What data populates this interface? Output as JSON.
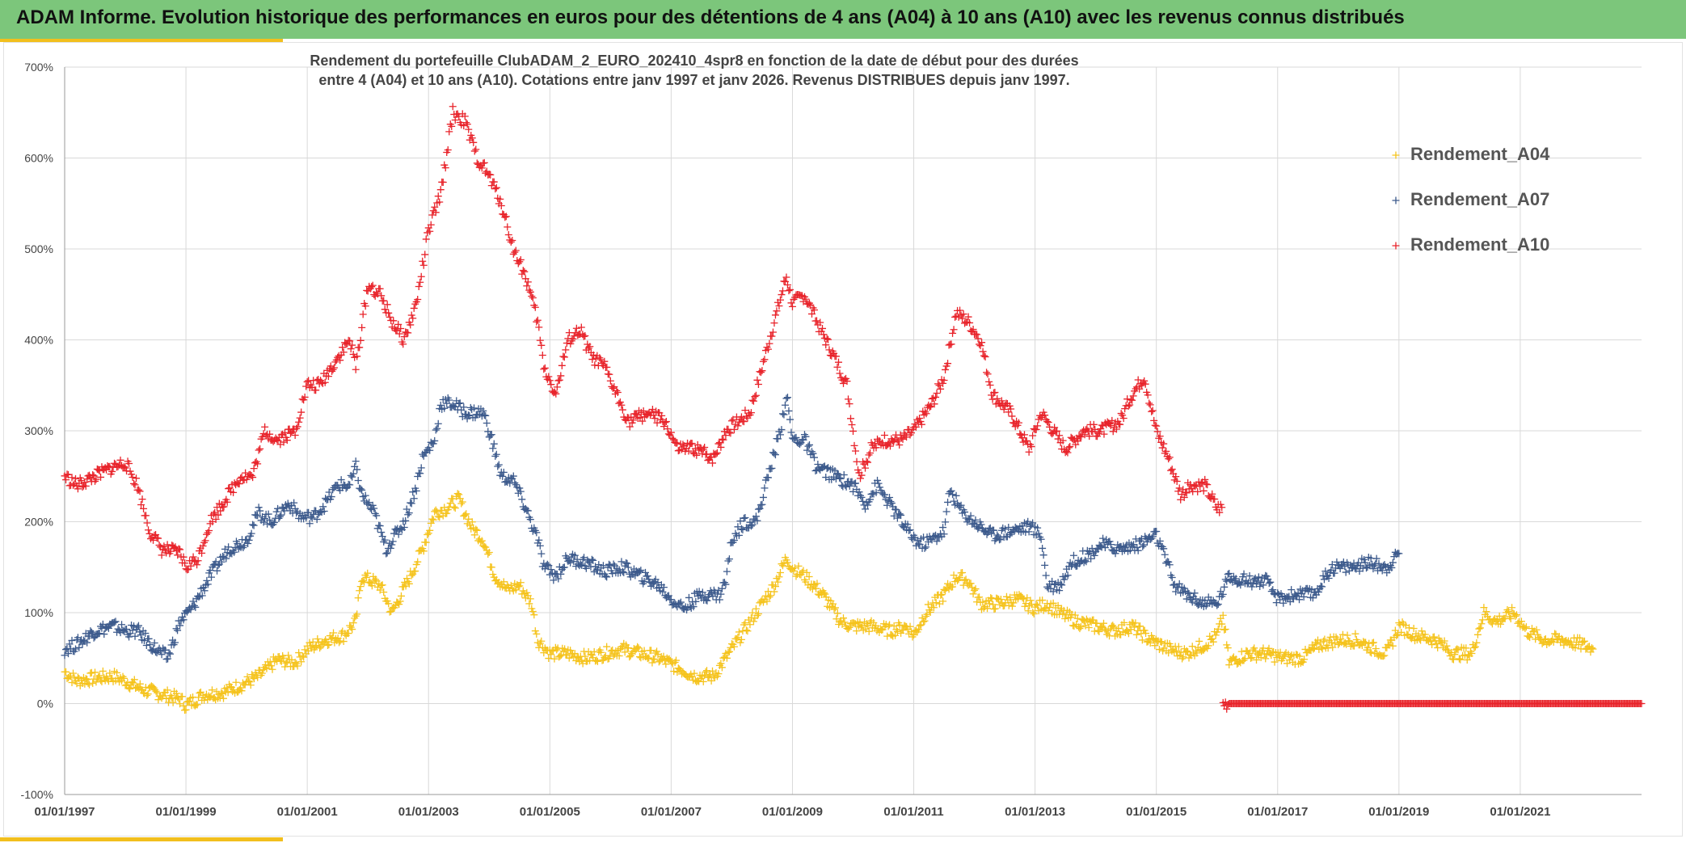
{
  "banner": {
    "title": "ADAM Informe. Evolution historique des performances en euros pour des détentions de 4 ans (A04) à 10 ans (A10) avec les revenus connus distribués"
  },
  "colors": {
    "banner_bg": "#7cc67b",
    "accent": "#f2bf1d",
    "A04": "#f5c31c",
    "A07": "#3c5a8c",
    "A10": "#e8232a"
  },
  "chart_data": {
    "type": "scatter",
    "title_lines": [
      "Rendement du portefeuille ClubADAM_2_EURO_202410_4spr8  en fonction de la date de début pour des durées",
      "entre 4 (A04) et 10 ans (A10). Cotations entre janv 1997 et janv 2026. Revenus DISTRIBUES depuis janv 1997."
    ],
    "xlabel": "",
    "ylabel": "",
    "x_range": [
      1997.0,
      2023.0
    ],
    "ylim": [
      -100,
      700
    ],
    "y_ticks": [
      "-100%",
      "0%",
      "100%",
      "200%",
      "300%",
      "400%",
      "500%",
      "600%",
      "700%"
    ],
    "y_tick_values": [
      -100,
      0,
      100,
      200,
      300,
      400,
      500,
      600,
      700
    ],
    "x_ticks": [
      "01/01/1997",
      "01/01/1999",
      "01/01/2001",
      "01/01/2003",
      "01/01/2005",
      "01/01/2007",
      "01/01/2009",
      "01/01/2011",
      "01/01/2013",
      "01/01/2015",
      "01/01/2017",
      "01/01/2019",
      "01/01/2021"
    ],
    "x_tick_values": [
      1997,
      1999,
      2001,
      2003,
      2005,
      2007,
      2009,
      2011,
      2013,
      2015,
      2017,
      2019,
      2021
    ],
    "grid": true,
    "legend_position": "top-right",
    "marker": "+",
    "series": [
      {
        "name": "Rendement_A04",
        "color": "#f5c31c",
        "points": [
          [
            1997.0,
            35
          ],
          [
            1997.2,
            25
          ],
          [
            1997.5,
            28
          ],
          [
            1997.8,
            30
          ],
          [
            1998.0,
            25
          ],
          [
            1998.3,
            15
          ],
          [
            1998.6,
            10
          ],
          [
            1998.9,
            5
          ],
          [
            1999.0,
            -2
          ],
          [
            1999.3,
            10
          ],
          [
            1999.6,
            12
          ],
          [
            1999.9,
            20
          ],
          [
            2000.2,
            30
          ],
          [
            2000.5,
            48
          ],
          [
            2000.8,
            45
          ],
          [
            2001.0,
            60
          ],
          [
            2001.3,
            70
          ],
          [
            2001.6,
            75
          ],
          [
            2001.8,
            90
          ],
          [
            2001.9,
            140
          ],
          [
            2002.2,
            130
          ],
          [
            2002.4,
            100
          ],
          [
            2002.7,
            140
          ],
          [
            2002.9,
            170
          ],
          [
            2003.1,
            210
          ],
          [
            2003.3,
            215
          ],
          [
            2003.5,
            225
          ],
          [
            2003.7,
            195
          ],
          [
            2003.9,
            180
          ],
          [
            2004.1,
            140
          ],
          [
            2004.3,
            125
          ],
          [
            2004.5,
            130
          ],
          [
            2004.7,
            110
          ],
          [
            2004.8,
            70
          ],
          [
            2005.0,
            55
          ],
          [
            2005.3,
            55
          ],
          [
            2005.6,
            50
          ],
          [
            2005.9,
            55
          ],
          [
            2006.2,
            60
          ],
          [
            2006.5,
            55
          ],
          [
            2006.8,
            50
          ],
          [
            2007.1,
            40
          ],
          [
            2007.4,
            30
          ],
          [
            2007.7,
            30
          ],
          [
            2007.9,
            50
          ],
          [
            2008.1,
            70
          ],
          [
            2008.3,
            90
          ],
          [
            2008.5,
            110
          ],
          [
            2008.7,
            130
          ],
          [
            2008.9,
            160
          ],
          [
            2009.0,
            150
          ],
          [
            2009.2,
            140
          ],
          [
            2009.5,
            120
          ],
          [
            2009.8,
            90
          ],
          [
            2010.0,
            85
          ],
          [
            2010.3,
            85
          ],
          [
            2010.6,
            80
          ],
          [
            2010.9,
            85
          ],
          [
            2011.0,
            75
          ],
          [
            2011.2,
            100
          ],
          [
            2011.5,
            120
          ],
          [
            2011.7,
            140
          ],
          [
            2011.9,
            135
          ],
          [
            2012.1,
            110
          ],
          [
            2012.4,
            110
          ],
          [
            2012.7,
            115
          ],
          [
            2013.0,
            105
          ],
          [
            2013.2,
            110
          ],
          [
            2013.4,
            100
          ],
          [
            2013.7,
            90
          ],
          [
            2014.0,
            85
          ],
          [
            2014.3,
            80
          ],
          [
            2014.6,
            85
          ],
          [
            2014.9,
            70
          ],
          [
            2015.2,
            60
          ],
          [
            2015.5,
            55
          ],
          [
            2015.8,
            65
          ],
          [
            2016.0,
            75
          ],
          [
            2016.1,
            95
          ],
          [
            2016.2,
            45
          ],
          [
            2016.5,
            55
          ],
          [
            2016.8,
            55
          ],
          [
            2017.1,
            50
          ],
          [
            2017.4,
            50
          ],
          [
            2017.7,
            65
          ],
          [
            2018.0,
            70
          ],
          [
            2018.3,
            70
          ],
          [
            2018.6,
            60
          ],
          [
            2018.8,
            55
          ],
          [
            2019.0,
            85
          ],
          [
            2019.3,
            75
          ],
          [
            2019.6,
            70
          ],
          [
            2019.9,
            55
          ],
          [
            2020.2,
            55
          ],
          [
            2020.4,
            100
          ],
          [
            2020.6,
            90
          ],
          [
            2020.9,
            100
          ],
          [
            2021.1,
            80
          ],
          [
            2021.4,
            70
          ],
          [
            2021.7,
            70
          ],
          [
            2022.0,
            65
          ],
          [
            2022.2,
            60
          ]
        ]
      },
      {
        "name": "Rendement_A07",
        "color": "#3c5a8c",
        "points": [
          [
            1997.0,
            60
          ],
          [
            1997.2,
            65
          ],
          [
            1997.5,
            80
          ],
          [
            1997.8,
            85
          ],
          [
            1998.0,
            80
          ],
          [
            1998.2,
            80
          ],
          [
            1998.5,
            60
          ],
          [
            1998.7,
            50
          ],
          [
            1998.9,
            90
          ],
          [
            1999.1,
            105
          ],
          [
            1999.4,
            140
          ],
          [
            1999.7,
            170
          ],
          [
            2000.0,
            180
          ],
          [
            2000.2,
            210
          ],
          [
            2000.4,
            200
          ],
          [
            2000.7,
            220
          ],
          [
            2000.9,
            205
          ],
          [
            2001.1,
            205
          ],
          [
            2001.3,
            220
          ],
          [
            2001.5,
            240
          ],
          [
            2001.7,
            240
          ],
          [
            2001.8,
            260
          ],
          [
            2001.9,
            230
          ],
          [
            2002.1,
            210
          ],
          [
            2002.3,
            170
          ],
          [
            2002.6,
            200
          ],
          [
            2002.8,
            240
          ],
          [
            2002.9,
            270
          ],
          [
            2003.1,
            290
          ],
          [
            2003.2,
            330
          ],
          [
            2003.4,
            330
          ],
          [
            2003.6,
            320
          ],
          [
            2003.9,
            320
          ],
          [
            2004.0,
            300
          ],
          [
            2004.2,
            250
          ],
          [
            2004.4,
            245
          ],
          [
            2004.6,
            215
          ],
          [
            2004.8,
            180
          ],
          [
            2004.9,
            150
          ],
          [
            2005.1,
            140
          ],
          [
            2005.3,
            160
          ],
          [
            2005.6,
            155
          ],
          [
            2005.9,
            145
          ],
          [
            2006.2,
            150
          ],
          [
            2006.5,
            140
          ],
          [
            2006.8,
            130
          ],
          [
            2007.0,
            115
          ],
          [
            2007.2,
            105
          ],
          [
            2007.5,
            120
          ],
          [
            2007.8,
            120
          ],
          [
            2007.9,
            135
          ],
          [
            2008.0,
            180
          ],
          [
            2008.2,
            200
          ],
          [
            2008.4,
            200
          ],
          [
            2008.6,
            250
          ],
          [
            2008.8,
            300
          ],
          [
            2008.9,
            340
          ],
          [
            2009.0,
            290
          ],
          [
            2009.2,
            290
          ],
          [
            2009.4,
            260
          ],
          [
            2009.7,
            250
          ],
          [
            2010.0,
            240
          ],
          [
            2010.2,
            220
          ],
          [
            2010.4,
            240
          ],
          [
            2010.6,
            220
          ],
          [
            2010.9,
            190
          ],
          [
            2011.1,
            175
          ],
          [
            2011.3,
            180
          ],
          [
            2011.5,
            190
          ],
          [
            2011.6,
            235
          ],
          [
            2011.8,
            210
          ],
          [
            2012.0,
            200
          ],
          [
            2012.3,
            185
          ],
          [
            2012.6,
            190
          ],
          [
            2012.9,
            195
          ],
          [
            2013.1,
            185
          ],
          [
            2013.2,
            130
          ],
          [
            2013.4,
            130
          ],
          [
            2013.6,
            155
          ],
          [
            2013.9,
            165
          ],
          [
            2014.1,
            175
          ],
          [
            2014.4,
            170
          ],
          [
            2014.7,
            175
          ],
          [
            2015.0,
            185
          ],
          [
            2015.2,
            150
          ],
          [
            2015.3,
            130
          ],
          [
            2015.5,
            120
          ],
          [
            2015.8,
            110
          ],
          [
            2016.0,
            110
          ],
          [
            2016.2,
            140
          ],
          [
            2016.5,
            135
          ],
          [
            2016.8,
            135
          ],
          [
            2017.0,
            115
          ],
          [
            2017.3,
            120
          ],
          [
            2017.6,
            120
          ],
          [
            2017.9,
            150
          ],
          [
            2018.2,
            150
          ],
          [
            2018.5,
            155
          ],
          [
            2018.8,
            150
          ],
          [
            2019.0,
            165
          ]
        ]
      },
      {
        "name": "Rendement_A10",
        "color": "#e8232a",
        "points": [
          [
            1997.0,
            250
          ],
          [
            1997.2,
            240
          ],
          [
            1997.5,
            250
          ],
          [
            1997.8,
            260
          ],
          [
            1998.0,
            265
          ],
          [
            1998.2,
            240
          ],
          [
            1998.4,
            190
          ],
          [
            1998.6,
            170
          ],
          [
            1998.9,
            165
          ],
          [
            1999.0,
            150
          ],
          [
            1999.2,
            160
          ],
          [
            1999.4,
            200
          ],
          [
            1999.7,
            230
          ],
          [
            1999.9,
            250
          ],
          [
            2000.1,
            250
          ],
          [
            2000.3,
            300
          ],
          [
            2000.5,
            290
          ],
          [
            2000.8,
            300
          ],
          [
            2001.0,
            350
          ],
          [
            2001.2,
            350
          ],
          [
            2001.5,
            380
          ],
          [
            2001.7,
            400
          ],
          [
            2001.8,
            370
          ],
          [
            2002.0,
            460
          ],
          [
            2002.2,
            450
          ],
          [
            2002.4,
            420
          ],
          [
            2002.6,
            400
          ],
          [
            2002.8,
            440
          ],
          [
            2003.0,
            520
          ],
          [
            2003.2,
            560
          ],
          [
            2003.4,
            650
          ],
          [
            2003.6,
            640
          ],
          [
            2003.8,
            600
          ],
          [
            2004.0,
            580
          ],
          [
            2004.2,
            550
          ],
          [
            2004.4,
            500
          ],
          [
            2004.6,
            470
          ],
          [
            2004.8,
            420
          ],
          [
            2004.9,
            370
          ],
          [
            2005.1,
            340
          ],
          [
            2005.3,
            400
          ],
          [
            2005.5,
            410
          ],
          [
            2005.7,
            380
          ],
          [
            2005.9,
            370
          ],
          [
            2006.1,
            340
          ],
          [
            2006.3,
            310
          ],
          [
            2006.6,
            320
          ],
          [
            2006.9,
            310
          ],
          [
            2007.1,
            280
          ],
          [
            2007.4,
            280
          ],
          [
            2007.7,
            270
          ],
          [
            2007.9,
            300
          ],
          [
            2008.1,
            310
          ],
          [
            2008.3,
            320
          ],
          [
            2008.5,
            370
          ],
          [
            2008.7,
            420
          ],
          [
            2008.9,
            470
          ],
          [
            2009.0,
            440
          ],
          [
            2009.2,
            450
          ],
          [
            2009.4,
            420
          ],
          [
            2009.7,
            380
          ],
          [
            2009.9,
            350
          ],
          [
            2010.1,
            250
          ],
          [
            2010.3,
            280
          ],
          [
            2010.5,
            290
          ],
          [
            2010.8,
            290
          ],
          [
            2011.0,
            300
          ],
          [
            2011.3,
            330
          ],
          [
            2011.5,
            360
          ],
          [
            2011.7,
            430
          ],
          [
            2011.9,
            420
          ],
          [
            2012.1,
            400
          ],
          [
            2012.3,
            340
          ],
          [
            2012.6,
            320
          ],
          [
            2012.9,
            280
          ],
          [
            2013.1,
            320
          ],
          [
            2013.3,
            300
          ],
          [
            2013.5,
            280
          ],
          [
            2013.8,
            300
          ],
          [
            2014.1,
            300
          ],
          [
            2014.4,
            310
          ],
          [
            2014.6,
            340
          ],
          [
            2014.8,
            360
          ],
          [
            2015.0,
            300
          ],
          [
            2015.2,
            270
          ],
          [
            2015.4,
            230
          ],
          [
            2015.6,
            240
          ],
          [
            2015.8,
            240
          ],
          [
            2016.0,
            215
          ],
          [
            2016.2,
            0
          ],
          [
            2023.0,
            0
          ]
        ]
      }
    ]
  }
}
